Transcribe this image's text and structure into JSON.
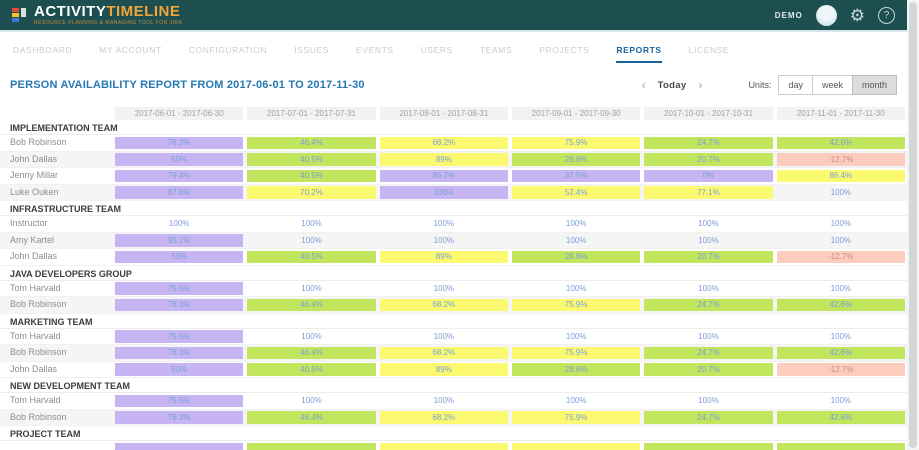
{
  "app": {
    "brand_primary": "ACTIVITY",
    "brand_secondary": "TIMELINE",
    "tagline": "RESOURCE PLANNING & MANAGING TOOL FOR JIRA",
    "user": "DEMO"
  },
  "nav": {
    "items": [
      "DASHBOARD",
      "MY ACCOUNT",
      "CONFIGURATION",
      "ISSUES",
      "EVENTS",
      "USERS",
      "TEAMS",
      "PROJECTS",
      "REPORTS",
      "LICENSE"
    ],
    "active": "REPORTS"
  },
  "report": {
    "title": "PERSON AVAILABILITY REPORT FROM 2017-06-01 TO 2017-11-30",
    "prev_label": "‹",
    "next_label": "›",
    "today_label": "Today",
    "units_label": "Units:",
    "units": [
      "day",
      "week",
      "month"
    ],
    "selected_unit": "month"
  },
  "colors": {
    "purple": "#c6b5f2",
    "green": "#c2e55e",
    "yellow": "#fbf96f",
    "pink": "#fcccbf",
    "none": "transparent"
  },
  "table": {
    "columns": [
      "2017-06-01 - 2017-06-30",
      "2017-07-01 - 2017-07-31",
      "2017-08-01 - 2017-08-31",
      "2017-09-01 - 2017-09-30",
      "2017-10-01 - 2017-10-31",
      "2017-11-01 - 2017-11-30"
    ],
    "groups": [
      {
        "name": "IMPLEMENTATION TEAM",
        "members": [
          {
            "name": "Bob Robinson",
            "cells": [
              {
                "v": "76.3%",
                "c": "purple"
              },
              {
                "v": "46.4%",
                "c": "green"
              },
              {
                "v": "68.2%",
                "c": "yellow"
              },
              {
                "v": "75.9%",
                "c": "yellow"
              },
              {
                "v": "24.7%",
                "c": "green"
              },
              {
                "v": "42.6%",
                "c": "green"
              }
            ]
          },
          {
            "name": "John Dallas",
            "cells": [
              {
                "v": "50%",
                "c": "purple"
              },
              {
                "v": "40.5%",
                "c": "green"
              },
              {
                "v": "89%",
                "c": "yellow"
              },
              {
                "v": "28.6%",
                "c": "green"
              },
              {
                "v": "20.7%",
                "c": "green"
              },
              {
                "v": "-12.7%",
                "c": "pink"
              }
            ]
          },
          {
            "name": "Jenny Millar",
            "cells": [
              {
                "v": "79.4%",
                "c": "purple"
              },
              {
                "v": "40.5%",
                "c": "green"
              },
              {
                "v": "86.7%",
                "c": "purple"
              },
              {
                "v": "37.5%",
                "c": "purple"
              },
              {
                "v": "0%",
                "c": "purple"
              },
              {
                "v": "86.4%",
                "c": "yellow"
              }
            ]
          },
          {
            "name": "Luke Ouken",
            "cells": [
              {
                "v": "87.8%",
                "c": "purple"
              },
              {
                "v": "70.2%",
                "c": "yellow"
              },
              {
                "v": "100%",
                "c": "purple"
              },
              {
                "v": "52.4%",
                "c": "yellow"
              },
              {
                "v": "77.1%",
                "c": "yellow"
              },
              {
                "v": "100%",
                "c": "none"
              }
            ]
          }
        ]
      },
      {
        "name": "INFRASTRUCTURE TEAM",
        "members": [
          {
            "name": "Instructor",
            "cells": [
              {
                "v": "100%",
                "c": "none"
              },
              {
                "v": "100%",
                "c": "none"
              },
              {
                "v": "100%",
                "c": "none"
              },
              {
                "v": "100%",
                "c": "none"
              },
              {
                "v": "100%",
                "c": "none"
              },
              {
                "v": "100%",
                "c": "none"
              }
            ]
          },
          {
            "name": "Amy Kartel",
            "cells": [
              {
                "v": "95.7%",
                "c": "purple"
              },
              {
                "v": "100%",
                "c": "none"
              },
              {
                "v": "100%",
                "c": "none"
              },
              {
                "v": "100%",
                "c": "none"
              },
              {
                "v": "100%",
                "c": "none"
              },
              {
                "v": "100%",
                "c": "none"
              }
            ]
          },
          {
            "name": "John Dallas",
            "cells": [
              {
                "v": "50%",
                "c": "purple"
              },
              {
                "v": "40.5%",
                "c": "green"
              },
              {
                "v": "89%",
                "c": "yellow"
              },
              {
                "v": "28.6%",
                "c": "green"
              },
              {
                "v": "20.7%",
                "c": "green"
              },
              {
                "v": "-12.7%",
                "c": "pink"
              }
            ]
          }
        ]
      },
      {
        "name": "JAVA DEVELOPERS GROUP",
        "members": [
          {
            "name": "Tom Harvald",
            "cells": [
              {
                "v": "75.5%",
                "c": "purple"
              },
              {
                "v": "100%",
                "c": "none"
              },
              {
                "v": "100%",
                "c": "none"
              },
              {
                "v": "100%",
                "c": "none"
              },
              {
                "v": "100%",
                "c": "none"
              },
              {
                "v": "100%",
                "c": "none"
              }
            ]
          },
          {
            "name": "Bob Robinson",
            "cells": [
              {
                "v": "76.3%",
                "c": "purple"
              },
              {
                "v": "46.4%",
                "c": "green"
              },
              {
                "v": "68.2%",
                "c": "yellow"
              },
              {
                "v": "75.9%",
                "c": "yellow"
              },
              {
                "v": "24.7%",
                "c": "green"
              },
              {
                "v": "42.6%",
                "c": "green"
              }
            ]
          }
        ]
      },
      {
        "name": "MARKETING TEAM",
        "members": [
          {
            "name": "Tom Harvald",
            "cells": [
              {
                "v": "75.5%",
                "c": "purple"
              },
              {
                "v": "100%",
                "c": "none"
              },
              {
                "v": "100%",
                "c": "none"
              },
              {
                "v": "100%",
                "c": "none"
              },
              {
                "v": "100%",
                "c": "none"
              },
              {
                "v": "100%",
                "c": "none"
              }
            ]
          },
          {
            "name": "Bob Robinson",
            "cells": [
              {
                "v": "76.3%",
                "c": "purple"
              },
              {
                "v": "46.4%",
                "c": "green"
              },
              {
                "v": "68.2%",
                "c": "yellow"
              },
              {
                "v": "75.9%",
                "c": "yellow"
              },
              {
                "v": "24.7%",
                "c": "green"
              },
              {
                "v": "42.6%",
                "c": "green"
              }
            ]
          },
          {
            "name": "John Dallas",
            "cells": [
              {
                "v": "50%",
                "c": "purple"
              },
              {
                "v": "40.5%",
                "c": "green"
              },
              {
                "v": "89%",
                "c": "yellow"
              },
              {
                "v": "28.6%",
                "c": "green"
              },
              {
                "v": "20.7%",
                "c": "green"
              },
              {
                "v": "-12.7%",
                "c": "pink"
              }
            ]
          }
        ]
      },
      {
        "name": "NEW DEVELOPMENT TEAM",
        "members": [
          {
            "name": "Tom Harvald",
            "cells": [
              {
                "v": "75.5%",
                "c": "purple"
              },
              {
                "v": "100%",
                "c": "none"
              },
              {
                "v": "100%",
                "c": "none"
              },
              {
                "v": "100%",
                "c": "none"
              },
              {
                "v": "100%",
                "c": "none"
              },
              {
                "v": "100%",
                "c": "none"
              }
            ]
          },
          {
            "name": "Bob Robinson",
            "cells": [
              {
                "v": "76.3%",
                "c": "purple"
              },
              {
                "v": "46.4%",
                "c": "green"
              },
              {
                "v": "68.2%",
                "c": "yellow"
              },
              {
                "v": "75.9%",
                "c": "yellow"
              },
              {
                "v": "24.7%",
                "c": "green"
              },
              {
                "v": "42.6%",
                "c": "green"
              }
            ]
          }
        ]
      },
      {
        "name": "PROJECT TEAM",
        "members": [
          {
            "name": "",
            "cells": [
              {
                "v": "",
                "c": "purple"
              },
              {
                "v": "",
                "c": "green"
              },
              {
                "v": "",
                "c": "yellow"
              },
              {
                "v": "",
                "c": "yellow"
              },
              {
                "v": "",
                "c": "green"
              },
              {
                "v": "",
                "c": "green"
              }
            ]
          }
        ]
      }
    ]
  }
}
